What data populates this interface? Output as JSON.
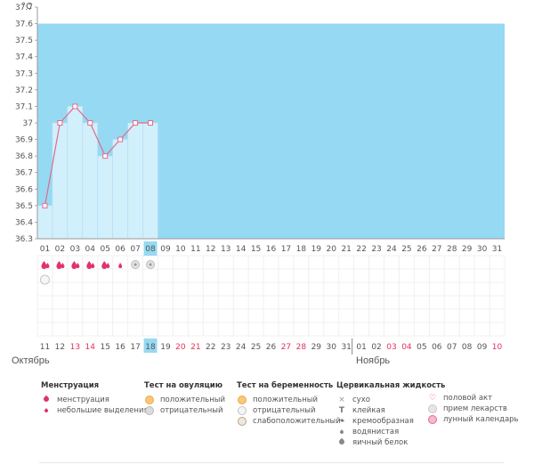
{
  "chart_data": {
    "type": "line",
    "unit_label": "°C",
    "y_ticks": [
      "37.7",
      "37.6",
      "37.5",
      "37.4",
      "37.3",
      "37.2",
      "37.1",
      "37",
      "36.9",
      "36.8",
      "36.7",
      "36.6",
      "36.5",
      "36.4",
      "36.3"
    ],
    "ylim": [
      36.3,
      37.7
    ],
    "band_top": 37.6,
    "days": [
      "01",
      "02",
      "03",
      "04",
      "05",
      "06",
      "07",
      "08",
      "09",
      "10",
      "11",
      "12",
      "13",
      "14",
      "15",
      "16",
      "17",
      "18",
      "19",
      "20",
      "21",
      "22",
      "23",
      "24",
      "25",
      "26",
      "27",
      "28",
      "29",
      "30",
      "31"
    ],
    "current_day_index": 7,
    "temperatures": [
      36.5,
      37.0,
      37.1,
      37.0,
      36.8,
      36.9,
      37.0,
      37.0
    ],
    "dates": [
      "11",
      "12",
      "13",
      "14",
      "15",
      "16",
      "17",
      "18",
      "19",
      "20",
      "21",
      "22",
      "23",
      "24",
      "25",
      "26",
      "27",
      "28",
      "29",
      "30",
      "31",
      "01",
      "02",
      "03",
      "04",
      "05",
      "06",
      "07",
      "08",
      "09",
      "10"
    ],
    "date_red": [
      false,
      false,
      true,
      true,
      false,
      false,
      false,
      false,
      false,
      true,
      true,
      false,
      false,
      false,
      false,
      false,
      true,
      true,
      false,
      false,
      false,
      false,
      false,
      true,
      true,
      false,
      false,
      false,
      false,
      false,
      true
    ],
    "menstruation_marks": [
      "full",
      "full",
      "full",
      "full",
      "full",
      "light",
      "",
      ""
    ],
    "ovulation_marks": [
      "",
      "",
      "",
      "",
      "",
      "",
      "neg",
      "neg"
    ],
    "pregnancy_marks": [
      "neg"
    ],
    "colors": {
      "band": "#96d9f3",
      "fill": "#d2effc",
      "line": "#e36b8b",
      "today": "#96d9f3",
      "red": "#e0335a"
    }
  },
  "months": {
    "first": "Октябрь",
    "second": "Ноябрь"
  },
  "legend": {
    "menstruation": {
      "title": "Менструация",
      "items": [
        "менструация",
        "небольшие выделения"
      ]
    },
    "ovulation": {
      "title": "Тест на овуляцию",
      "items": [
        "положительный",
        "отрицательный"
      ]
    },
    "pregnancy": {
      "title": "Тест на беременность",
      "items": [
        "положительный",
        "отрицательный",
        "слабоположительный"
      ]
    },
    "cervical": {
      "title": "Цервикальная жидкость",
      "items": [
        "сухо",
        "клейкая",
        "кремообразная",
        "водянистая",
        "яичный белок"
      ]
    },
    "other": {
      "items": [
        "половой акт",
        "прием лекарств",
        "лунный календарь"
      ]
    }
  }
}
